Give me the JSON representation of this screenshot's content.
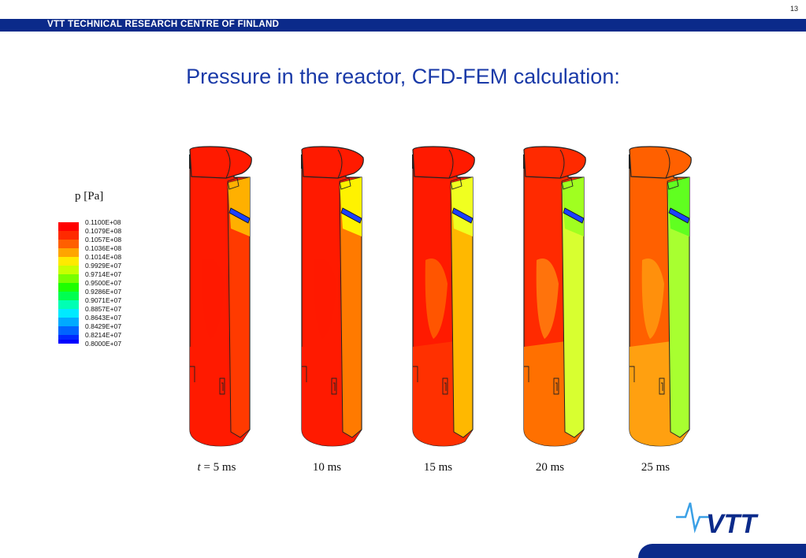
{
  "page": {
    "number": "13"
  },
  "header": {
    "organization": "VTT TECHNICAL RESEARCH CENTRE OF FINLAND"
  },
  "title": "Pressure in the reactor, CFD-FEM calculation:",
  "legend": {
    "title": "p [Pa]",
    "levels": [
      {
        "label": "0.1100E+08",
        "color": "#ff0000"
      },
      {
        "label": "0.1079E+08",
        "color": "#ff2a00"
      },
      {
        "label": "0.1057E+08",
        "color": "#ff5f00"
      },
      {
        "label": "0.1036E+08",
        "color": "#ffa500"
      },
      {
        "label": "0.1014E+08",
        "color": "#ffea00"
      },
      {
        "label": "0.9929E+07",
        "color": "#c8ff00"
      },
      {
        "label": "0.9714E+07",
        "color": "#78ff00"
      },
      {
        "label": "0.9500E+07",
        "color": "#1eff00"
      },
      {
        "label": "0.9286E+07",
        "color": "#00ff50"
      },
      {
        "label": "0.9071E+07",
        "color": "#00ffb4"
      },
      {
        "label": "0.8857E+07",
        "color": "#00eaff"
      },
      {
        "label": "0.8643E+07",
        "color": "#00aaff"
      },
      {
        "label": "0.8429E+07",
        "color": "#0064ff"
      },
      {
        "label": "0.8214E+07",
        "color": "#0028ff"
      },
      {
        "label": "0.8000E+07",
        "color": "#0000ff"
      }
    ]
  },
  "snapshots": [
    {
      "time_prefix": "t",
      "time_suffix": " = 5 ms",
      "main_color": "#ff1a00",
      "inner_color": "#ff3a00",
      "inner_top_color": "#ffb000",
      "lower_color": "#ff1a00",
      "patch_color": "#ff1a00"
    },
    {
      "time_prefix": "",
      "time_suffix": "10 ms",
      "main_color": "#ff1a00",
      "inner_color": "#ff7a00",
      "inner_top_color": "#fff200",
      "lower_color": "#ff1a00",
      "patch_color": "#ff1a00"
    },
    {
      "time_prefix": "",
      "time_suffix": "15 ms",
      "main_color": "#ff1a00",
      "inner_color": "#ffb800",
      "inner_top_color": "#f0ff20",
      "lower_color": "#ff3000",
      "patch_color": "#ff6a00"
    },
    {
      "time_prefix": "",
      "time_suffix": "20 ms",
      "main_color": "#ff2a00",
      "inner_color": "#d8ff30",
      "inner_top_color": "#a0ff20",
      "lower_color": "#ff7000",
      "patch_color": "#ff8c10"
    },
    {
      "time_prefix": "",
      "time_suffix": "25 ms",
      "main_color": "#ff6000",
      "inner_color": "#a8ff30",
      "inner_top_color": "#60ff20",
      "lower_color": "#ffa010",
      "patch_color": "#ffa010"
    }
  ],
  "logo": {
    "text": "VTT",
    "colors": {
      "brand": "#0b2a8a",
      "accent": "#3aa0e6"
    }
  }
}
